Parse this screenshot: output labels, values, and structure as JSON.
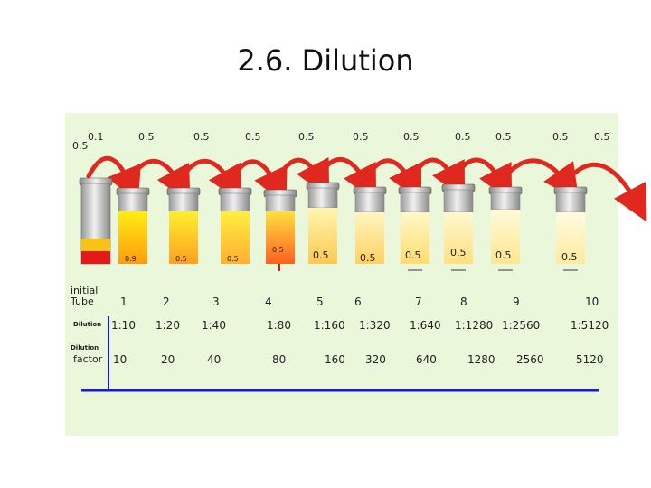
{
  "title": "2.6. Dilution",
  "transfer_volumes": [
    "0.1",
    "0.5",
    "0.5",
    "0.5",
    "0.5",
    "0.5",
    "0.5",
    "0.5",
    "0.5",
    "0.5",
    "0.5"
  ],
  "first_tube_volume": "0.5",
  "tube_volumes": [
    "0.9",
    "0.5",
    "0.5",
    "0.5",
    "0.5",
    "0.5",
    "0.5",
    "0.5",
    "0.5",
    "0.5"
  ],
  "labels": {
    "initial_tube": "initial\nTube",
    "dilution": "Dilution",
    "dilution_factor_top": "Dilution",
    "dilution_factor_bottom": "factor"
  },
  "tube_numbers": [
    "1",
    "2",
    "3",
    "4",
    "5",
    "6",
    "7",
    "8",
    "9",
    "10"
  ],
  "dilutions": [
    "1:10",
    "1:20",
    "1:40",
    "1:80",
    "1:160",
    "1:320",
    "1:640",
    "1:1280",
    "1:2560",
    "1:5120"
  ],
  "factors": [
    "10",
    "20",
    "40",
    "80",
    "160",
    "320",
    "640",
    "1280",
    "2560",
    "5120"
  ],
  "colors": {
    "panel": "#eaf7da",
    "arrow": "#e0281e",
    "axis_line": "#1a1acc",
    "liquid_strong": "#f0a010",
    "liquid_light": "#fff7c0"
  }
}
